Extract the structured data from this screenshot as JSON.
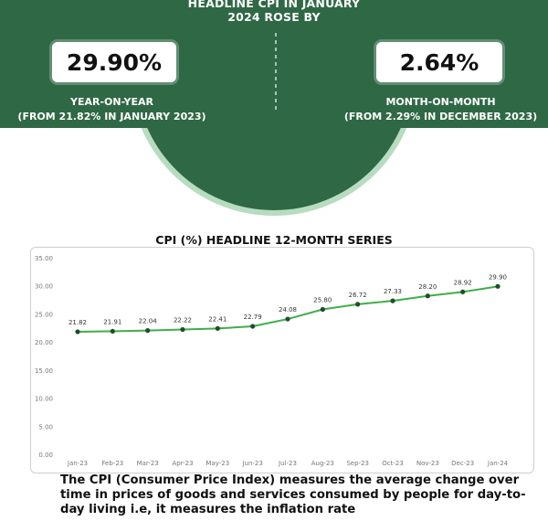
{
  "banner": {
    "headline_line1": "HEADLINE CPI IN JANUARY",
    "headline_line2": "2024 ROSE BY",
    "yoy": {
      "value": "29.90%",
      "label": "YEAR-ON-YEAR",
      "sub": "(FROM 21.82% IN JANUARY 2023)"
    },
    "mom": {
      "value": "2.64%",
      "label": "MONTH-ON-MONTH",
      "sub": "(FROM 2.29% IN DECEMBER 2023)"
    },
    "colors": {
      "dark_green": "#2f6845",
      "light_ring": "#b7dcc0"
    }
  },
  "chart_data": {
    "type": "line",
    "title": "CPI (%)  HEADLINE 12-MONTH SERIES",
    "categories": [
      "Jan-23",
      "Feb-23",
      "Mar-23",
      "Apr-23",
      "May-23",
      "Jun-23",
      "Jul-23",
      "Aug-23",
      "Sep-23",
      "Oct-23",
      "Nov-23",
      "Dec-23",
      "Jan-24"
    ],
    "values": [
      21.82,
      21.91,
      22.04,
      22.22,
      22.41,
      22.79,
      24.08,
      25.8,
      26.72,
      27.33,
      28.2,
      28.92,
      29.9
    ],
    "value_labels": [
      "21.82",
      "21.91",
      "22.04",
      "22.22",
      "22.41",
      "22.79",
      "24.08",
      "25.80",
      "26.72",
      "27.33",
      "28.20",
      "28.92",
      "29.90"
    ],
    "yticks": [
      "0.00",
      "5.00",
      "10.00",
      "15.00",
      "20.00",
      "25.00",
      "30.00",
      "35.00"
    ],
    "ylim": [
      0,
      35
    ],
    "grid": true,
    "line_color": "#3fae49",
    "marker_color": "#1f4d2c"
  },
  "note": "The CPI (Consumer Price Index) measures the average change over time in prices of goods and services consumed by people for day-to-day living i.e, it measures the inflation rate"
}
